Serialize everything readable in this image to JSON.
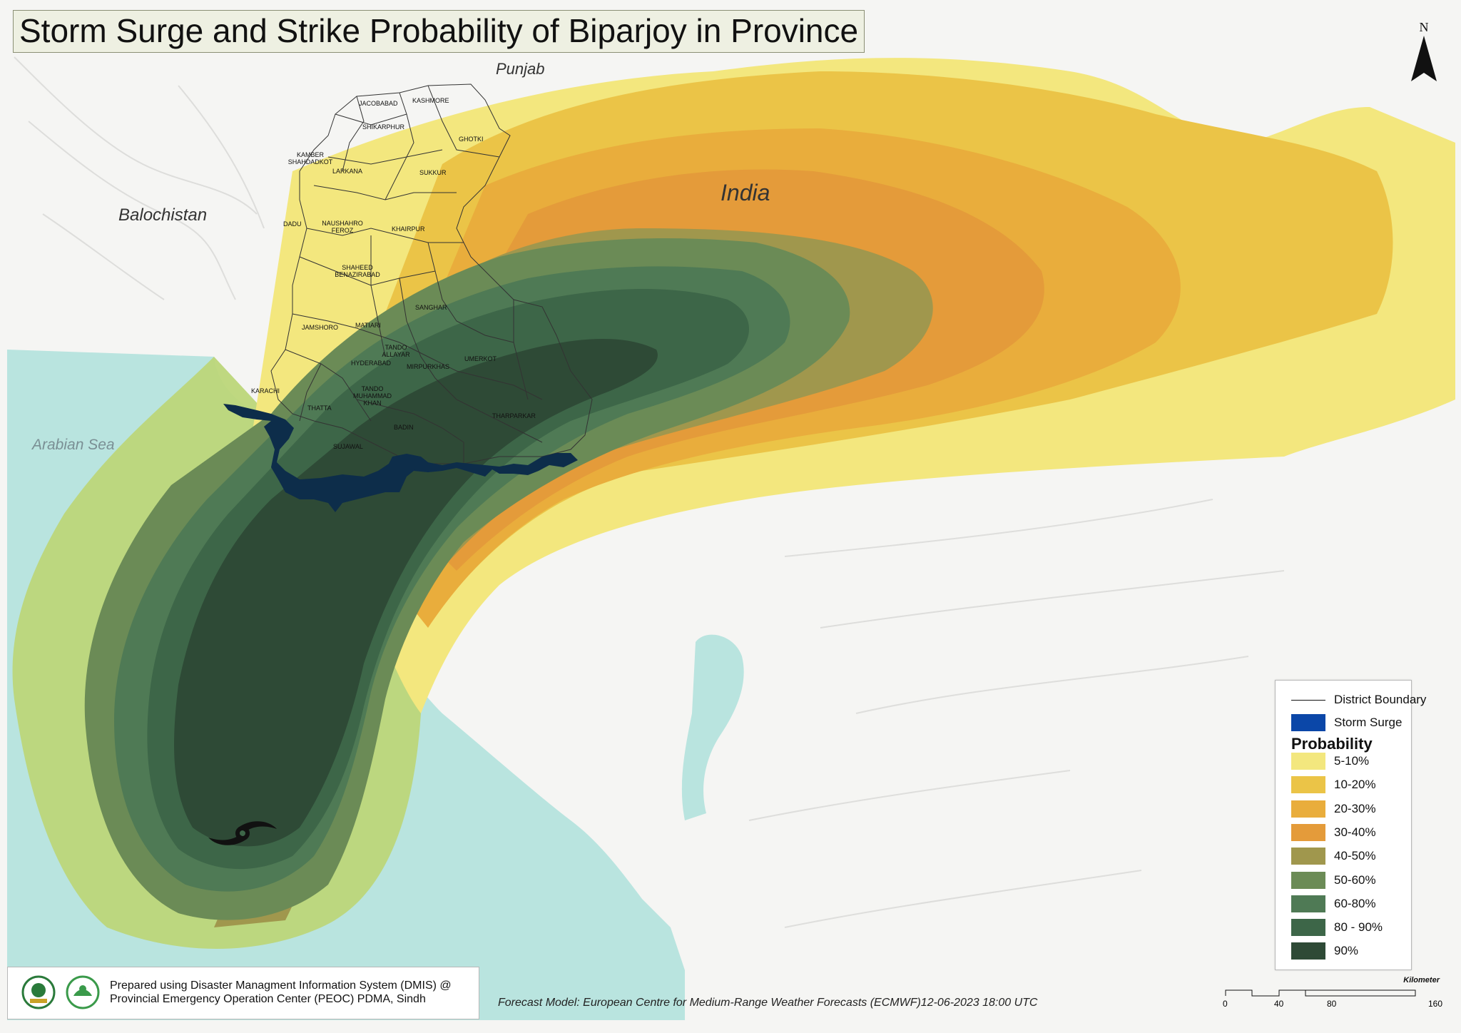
{
  "title": "Storm Surge and Strike Probability of Biparjoy in Province",
  "north_label": "N",
  "region_labels": {
    "punjab": "Punjab",
    "balochistan": "Balochistan",
    "india": "India",
    "arabian_sea": "Arabian Sea"
  },
  "districts": [
    "JACOBABAD",
    "KASHMORE",
    "SHIKARPHUR",
    "GHOTKI",
    "KAMBER SHAHDADKOT",
    "LARKANA",
    "SUKKUR",
    "DADU",
    "NAUSHAHRO FEROZ",
    "KHAIRPUR",
    "SHAHEED BENAZIRABAD",
    "SANGHAR",
    "JAMSHORO",
    "MATIARI",
    "TANDO ALLAYAR",
    "HYDERABAD",
    "UMERKOT",
    "MIRPURKHAS",
    "KARACHI",
    "THATTA",
    "TANDO MUHAMMAD KHAN",
    "BADIN",
    "THARPARKAR",
    "SUJAWAL"
  ],
  "legend": {
    "district_boundary": "District Boundary",
    "storm_surge": "Storm Surge",
    "probability_heading": "Probability",
    "classes": [
      {
        "label": "5-10%",
        "color": "#f3e77e"
      },
      {
        "label": "10-20%",
        "color": "#ebc447"
      },
      {
        "label": "20-30%",
        "color": "#e9ad3c"
      },
      {
        "label": "30-40%",
        "color": "#e49b3a"
      },
      {
        "label": "40-50%",
        "color": "#a0974d"
      },
      {
        "label": "50-60%",
        "color": "#6b8b56"
      },
      {
        "label": "60-80%",
        "color": "#4f7a55"
      },
      {
        "label": "80 - 90%",
        "color": "#3d6648"
      },
      {
        "label": "90%",
        "color": "#2e4a36"
      }
    ],
    "storm_surge_color": "#0b47a8"
  },
  "colors": {
    "sea": "#b9e4df",
    "land": "#f5f5f3",
    "outer_band": "#bcd679",
    "surge_fill": "#0d2d4a"
  },
  "footer": {
    "line1": "Prepared using Disaster Managment Information System (DMIS) @",
    "line2": "Provincial Emergency Operation Center (PEOC) PDMA, Sindh"
  },
  "forecast_text": "Forecast Model: European Centre for Medium-Range Weather Forecasts (ECMWF)12-06-2023  18:00 UTC",
  "scalebar": {
    "unit": "Kilometer",
    "ticks": [
      "0",
      "40",
      "80",
      "160"
    ]
  }
}
